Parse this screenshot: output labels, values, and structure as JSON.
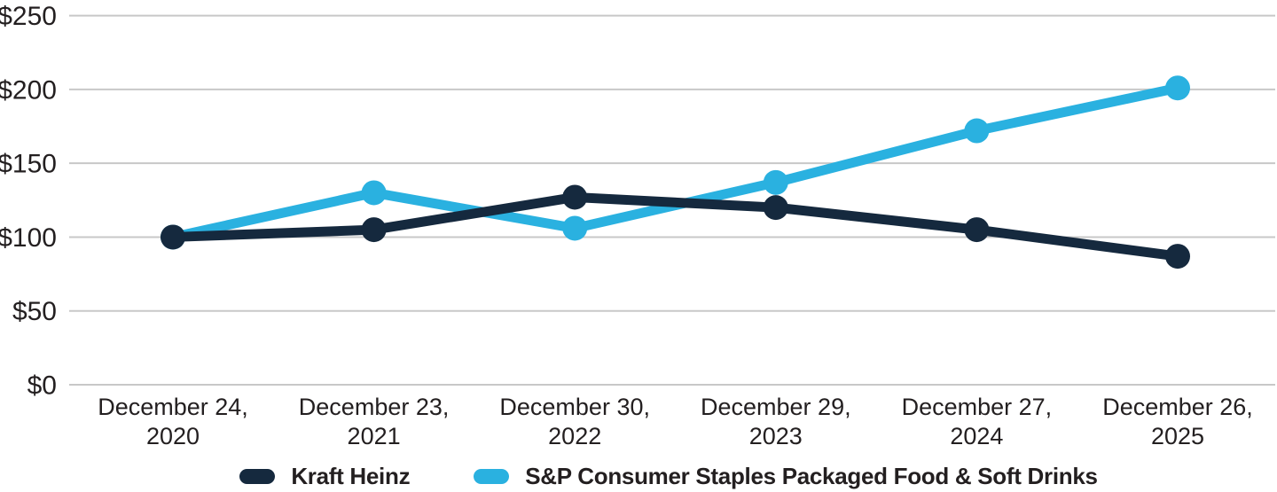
{
  "chart_data": {
    "type": "line",
    "categories": [
      "December 24, 2020",
      "December 23, 2021",
      "December 30, 2022",
      "December 29, 2023",
      "December 27, 2024",
      "December 26, 2025"
    ],
    "series": [
      {
        "name": "Kraft Heinz",
        "color": "#15293E",
        "values": [
          100,
          105,
          127,
          120,
          105,
          87
        ]
      },
      {
        "name": "S&P Consumer Staples Packaged Food & Soft Drinks",
        "color": "#2AB1E0",
        "values": [
          100,
          130,
          106,
          137,
          172,
          201
        ]
      }
    ],
    "y_ticks": [
      "$0",
      "$50",
      "$100",
      "$150",
      "$200",
      "$250"
    ],
    "ylim": [
      0,
      250
    ],
    "y_tick_step": 50,
    "currency_prefix": "$",
    "grid": "horizontal",
    "legend_position": "bottom",
    "gridline_color": "#C8C8C8",
    "text_color": "#231F20",
    "marker_style": "circle"
  }
}
